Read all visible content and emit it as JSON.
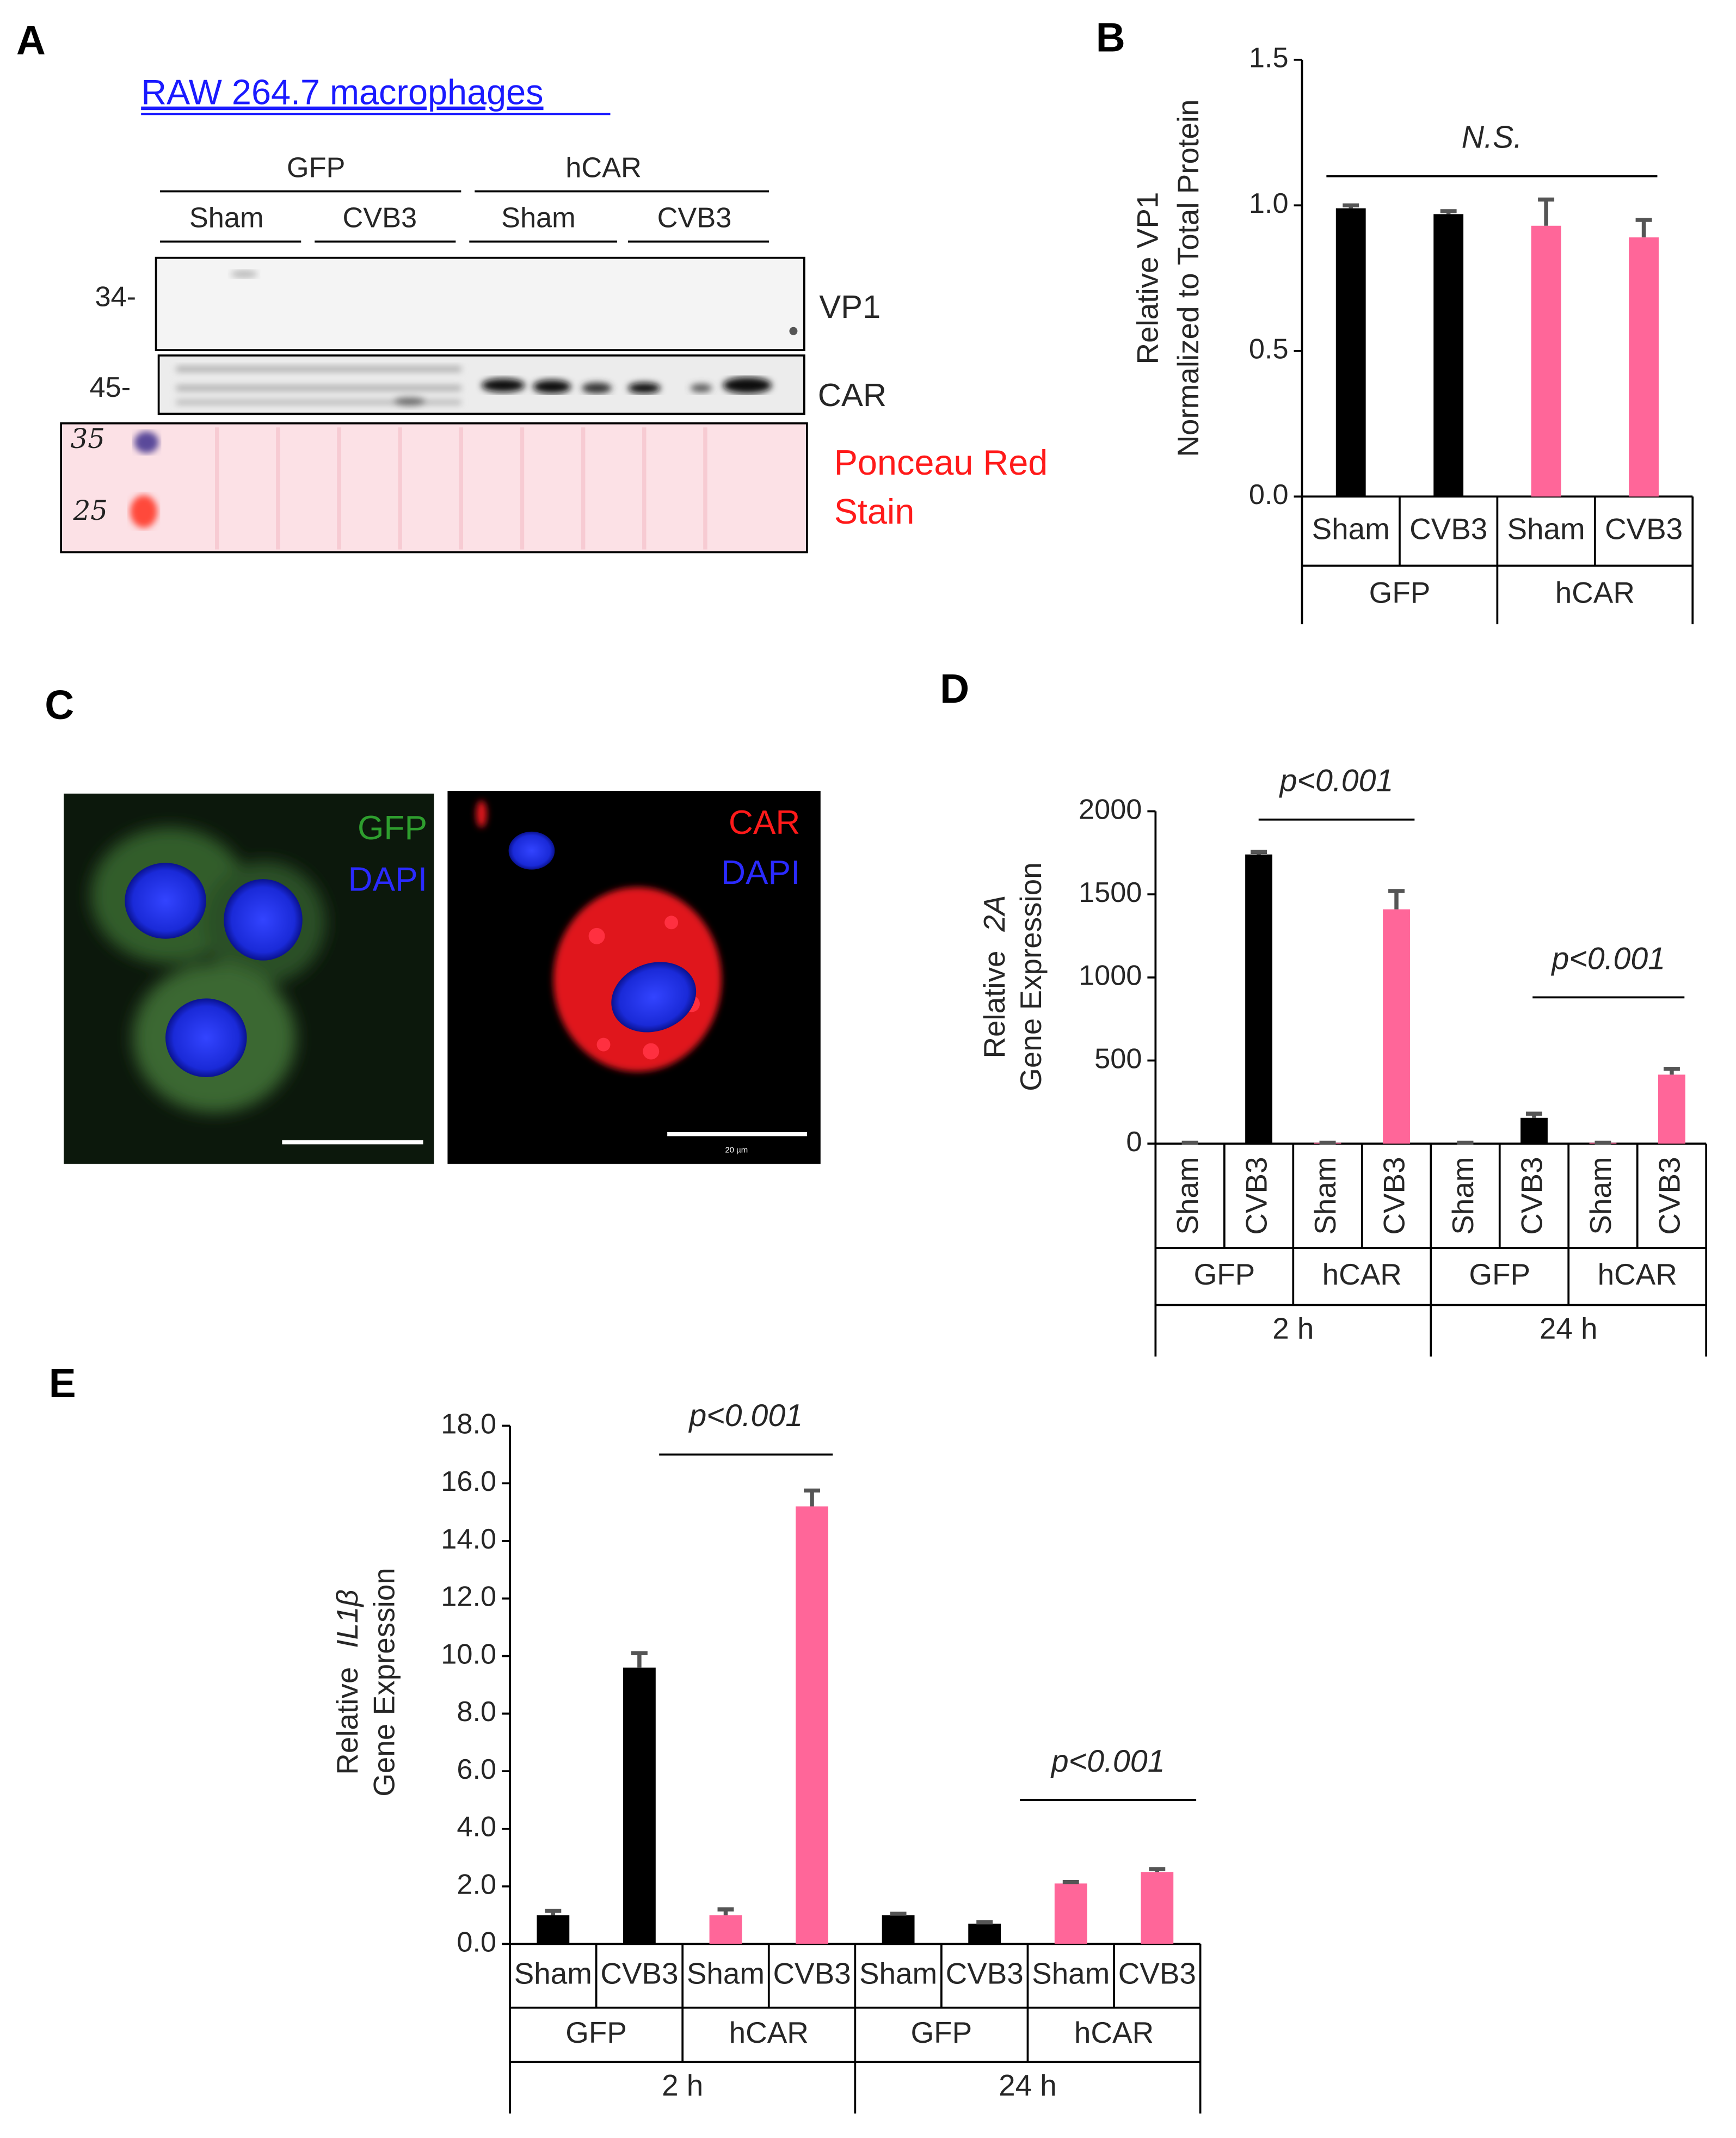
{
  "figure": {
    "panel_a": {
      "label": "A",
      "title": "RAW 264.7 macrophages",
      "groups": [
        "GFP",
        "hCAR"
      ],
      "conditions": [
        "Sham",
        "CVB3",
        "Sham",
        "CVB3"
      ],
      "markers": [
        "34-",
        "45-"
      ],
      "bands": [
        "VP1",
        "CAR"
      ],
      "stain": [
        "Ponceau Red",
        "Stain"
      ],
      "ladder": [
        "35",
        "25"
      ]
    },
    "panel_c": {
      "label": "C",
      "left": [
        "GFP",
        "DAPI"
      ],
      "right": [
        "CAR",
        "DAPI"
      ],
      "scale": "20 µm"
    }
  },
  "chart_data": [
    {
      "type": "bar",
      "panel": "B",
      "ylabel": [
        "Relative VP1",
        "Normalized to Total Protein"
      ],
      "categories": [
        "Sham",
        "CVB3",
        "Sham",
        "CVB3"
      ],
      "groups": [
        [
          "GFP",
          "hCAR"
        ]
      ],
      "values": [
        0.99,
        0.97,
        0.93,
        0.89
      ],
      "errors": [
        0.01,
        0.01,
        0.09,
        0.06
      ],
      "colors": [
        "#000000",
        "#000000",
        "#ff6699",
        "#ff6699"
      ],
      "ylim": [
        0,
        1.5
      ],
      "yticks": [
        {
          "value": 0,
          "label": "0.0"
        },
        {
          "value": 0.5,
          "label": "0.5"
        },
        {
          "value": 1,
          "label": "1.0"
        },
        {
          "value": 1.5,
          "label": "1.5"
        }
      ],
      "annotations": [
        {
          "text": "N.S.",
          "y": 1.1
        }
      ]
    },
    {
      "type": "bar",
      "panel": "D",
      "ylabel": [
        "Relative",
        "Gene Expression"
      ],
      "ylabel_italic": "2A",
      "categories": [
        "Sham",
        "CVB3",
        "Sham",
        "CVB3",
        "Sham",
        "CVB3",
        "Sham",
        "CVB3"
      ],
      "groups": [
        [
          "GFP",
          "hCAR",
          "GFP",
          "hCAR"
        ],
        [
          "2 h",
          "24 h"
        ]
      ],
      "values": [
        5,
        1740,
        5,
        1410,
        5,
        155,
        5,
        415
      ],
      "errors": [
        0,
        15,
        0,
        110,
        0,
        25,
        0,
        35
      ],
      "colors": [
        "#000000",
        "#000000",
        "#ff6699",
        "#ff6699",
        "#000000",
        "#000000",
        "#ff6699",
        "#ff6699"
      ],
      "ylim": [
        0,
        2000
      ],
      "yticks": [
        0,
        500,
        1000,
        1500,
        2000
      ],
      "annotations": [
        {
          "text": "p<0.001",
          "y": 1950
        },
        {
          "text": "p<0.001",
          "y": 880
        }
      ]
    },
    {
      "type": "bar",
      "panel": "E",
      "ylabel": [
        "Relative",
        "Gene Expression"
      ],
      "ylabel_italic": "IL1β",
      "categories": [
        "Sham",
        "CVB3",
        "Sham",
        "CVB3",
        "Sham",
        "CVB3",
        "Sham",
        "CVB3"
      ],
      "groups": [
        [
          "GFP",
          "hCAR",
          "GFP",
          "hCAR"
        ],
        [
          "2 h",
          "24 h"
        ]
      ],
      "values": [
        1.0,
        9.6,
        1.0,
        15.2,
        1.0,
        0.7,
        2.1,
        2.5
      ],
      "errors": [
        0.15,
        0.5,
        0.2,
        0.55,
        0.05,
        0.05,
        0.05,
        0.1
      ],
      "colors": [
        "#000000",
        "#000000",
        "#ff6699",
        "#ff6699",
        "#000000",
        "#000000",
        "#ff6699",
        "#ff6699"
      ],
      "ylim": [
        0,
        18
      ],
      "yticks": [
        {
          "value": 0,
          "label": "0.0"
        },
        {
          "value": 2,
          "label": "2.0"
        },
        {
          "value": 4,
          "label": "4.0"
        },
        {
          "value": 6,
          "label": "6.0"
        },
        {
          "value": 8,
          "label": "8.0"
        },
        {
          "value": 10,
          "label": "10.0"
        },
        {
          "value": 12,
          "label": "12.0"
        },
        {
          "value": 14,
          "label": "14.0"
        },
        {
          "value": 16,
          "label": "16.0"
        },
        {
          "value": 18,
          "label": "18.0"
        }
      ],
      "annotations": [
        {
          "text": "p<0.001",
          "y": 17.0
        },
        {
          "text": "p<0.001",
          "y": 5.0
        }
      ]
    }
  ]
}
